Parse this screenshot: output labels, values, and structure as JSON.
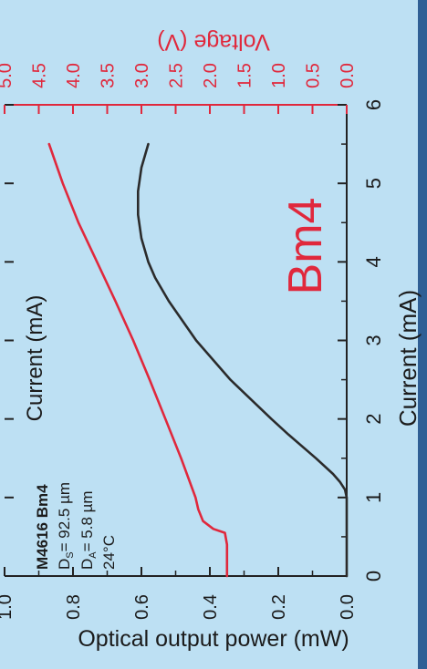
{
  "colors": {
    "background": "#bde0f3",
    "axis": "#222222",
    "voltage": "#e0283c",
    "power": "#2b2b2b",
    "edge": "#2f5f95"
  },
  "chart_data": {
    "type": "line",
    "orientation": "rotated 90 degrees clockwise",
    "xlabel": "Current (mA)",
    "xlabel_top": "Current (mA)",
    "ylabel": "Optical output power (mW)",
    "y2label": "Voltage (V)",
    "xlim": [
      0,
      6
    ],
    "ylim": [
      0,
      1.0
    ],
    "y2lim": [
      0,
      5.0
    ],
    "x_ticks": [
      "0",
      "1",
      "2",
      "3",
      "4",
      "5",
      "6"
    ],
    "y_ticks": [
      "0.0",
      "0.2",
      "0.4",
      "0.6",
      "0.8",
      "1.0"
    ],
    "y2_ticks": [
      "0.0",
      "0.5",
      "1.0",
      "1.5",
      "2.0",
      "2.5",
      "3.0",
      "3.5",
      "4.0",
      "4.5",
      "5.0"
    ],
    "annotation": {
      "device": "M4616 Bm4",
      "ds": "D",
      "ds_sub": "S",
      "ds_val": "= 92.5 µm",
      "da": "D",
      "da_sub": "A",
      "da_val": "= 5.8 µm",
      "temp": "24°C"
    },
    "big_label": "Bm4",
    "series": [
      {
        "name": "Bm4",
        "axis": "left",
        "x": [
          0.0,
          0.5,
          1.0,
          1.1,
          1.2,
          1.3,
          1.5,
          1.8,
          2.0,
          2.5,
          3.0,
          3.5,
          3.8,
          4.0,
          4.3,
          4.6,
          4.9,
          5.2,
          5.5
        ],
        "y": [
          0.0,
          0.0,
          0.0,
          0.005,
          0.02,
          0.04,
          0.09,
          0.17,
          0.22,
          0.34,
          0.44,
          0.52,
          0.56,
          0.58,
          0.6,
          0.61,
          0.61,
          0.6,
          0.58
        ]
      },
      {
        "name": "Voltage",
        "axis": "right",
        "x": [
          0.0,
          0.2,
          0.4,
          0.55,
          0.6,
          0.7,
          0.85,
          1.0,
          1.5,
          2.0,
          2.5,
          3.0,
          3.5,
          4.0,
          4.5,
          5.0,
          5.5
        ],
        "y": [
          1.75,
          1.75,
          1.75,
          1.78,
          1.95,
          2.1,
          2.17,
          2.21,
          2.42,
          2.65,
          2.88,
          3.12,
          3.38,
          3.65,
          3.92,
          4.15,
          4.35
        ]
      }
    ]
  }
}
